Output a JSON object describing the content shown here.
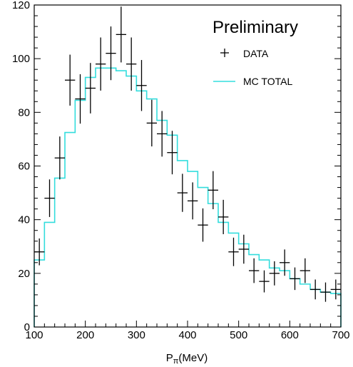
{
  "chart_data": {
    "type": "line",
    "title": "Preliminary",
    "xlabel": "Pπ(MeV)",
    "xlabel_main": "P",
    "xlabel_sub": "π",
    "xlabel_unit": "(MeV)",
    "ylabel": "",
    "xlim": [
      100,
      700
    ],
    "ylim": [
      0,
      120
    ],
    "x_ticks": [
      100,
      200,
      300,
      400,
      500,
      600,
      700
    ],
    "y_ticks": [
      0,
      20,
      40,
      60,
      80,
      100,
      120
    ],
    "grid": false,
    "legend_position": "top-right",
    "legend": {
      "data_label": "DATA",
      "mc_label": "MC TOTAL"
    },
    "colors": {
      "data": "#000000",
      "mc": "#33dddd",
      "axis": "#000000"
    },
    "bin_width": 20,
    "series": [
      {
        "name": "DATA",
        "style": "errorbar",
        "x": [
          110,
          130,
          150,
          170,
          190,
          210,
          230,
          250,
          270,
          290,
          310,
          330,
          350,
          370,
          390,
          410,
          430,
          450,
          470,
          490,
          510,
          530,
          550,
          570,
          590,
          610,
          630,
          650,
          670,
          690
        ],
        "y": [
          28,
          48,
          63,
          92,
          85,
          89,
          98,
          102,
          109,
          98,
          90,
          76,
          72,
          65,
          50,
          47,
          38,
          51,
          41,
          28,
          29,
          21,
          17,
          20,
          24,
          18,
          21,
          14,
          13,
          14
        ],
        "yerr": [
          5,
          7,
          8,
          9.5,
          9.2,
          9.4,
          9.9,
          10,
          10.4,
          9.9,
          9.5,
          8.7,
          8.5,
          8.1,
          7.1,
          6.9,
          6.2,
          7.1,
          6.4,
          5.3,
          5.4,
          4.6,
          4.1,
          4.5,
          4.9,
          4.2,
          4.6,
          3.7,
          3.6,
          3.7
        ]
      },
      {
        "name": "MC TOTAL",
        "style": "step",
        "x": [
          110,
          130,
          150,
          170,
          190,
          210,
          230,
          250,
          270,
          290,
          310,
          330,
          350,
          370,
          390,
          410,
          430,
          450,
          470,
          490,
          510,
          530,
          550,
          570,
          590,
          610,
          630,
          650,
          670,
          690
        ],
        "y": [
          25,
          39,
          55.5,
          72.5,
          84.5,
          93,
          96.5,
          96.5,
          95.5,
          93.5,
          88,
          85,
          77,
          71.5,
          62,
          58,
          52,
          46,
          39,
          35,
          31,
          27,
          25,
          22,
          21,
          18,
          16,
          14,
          13,
          12.5
        ]
      }
    ]
  }
}
